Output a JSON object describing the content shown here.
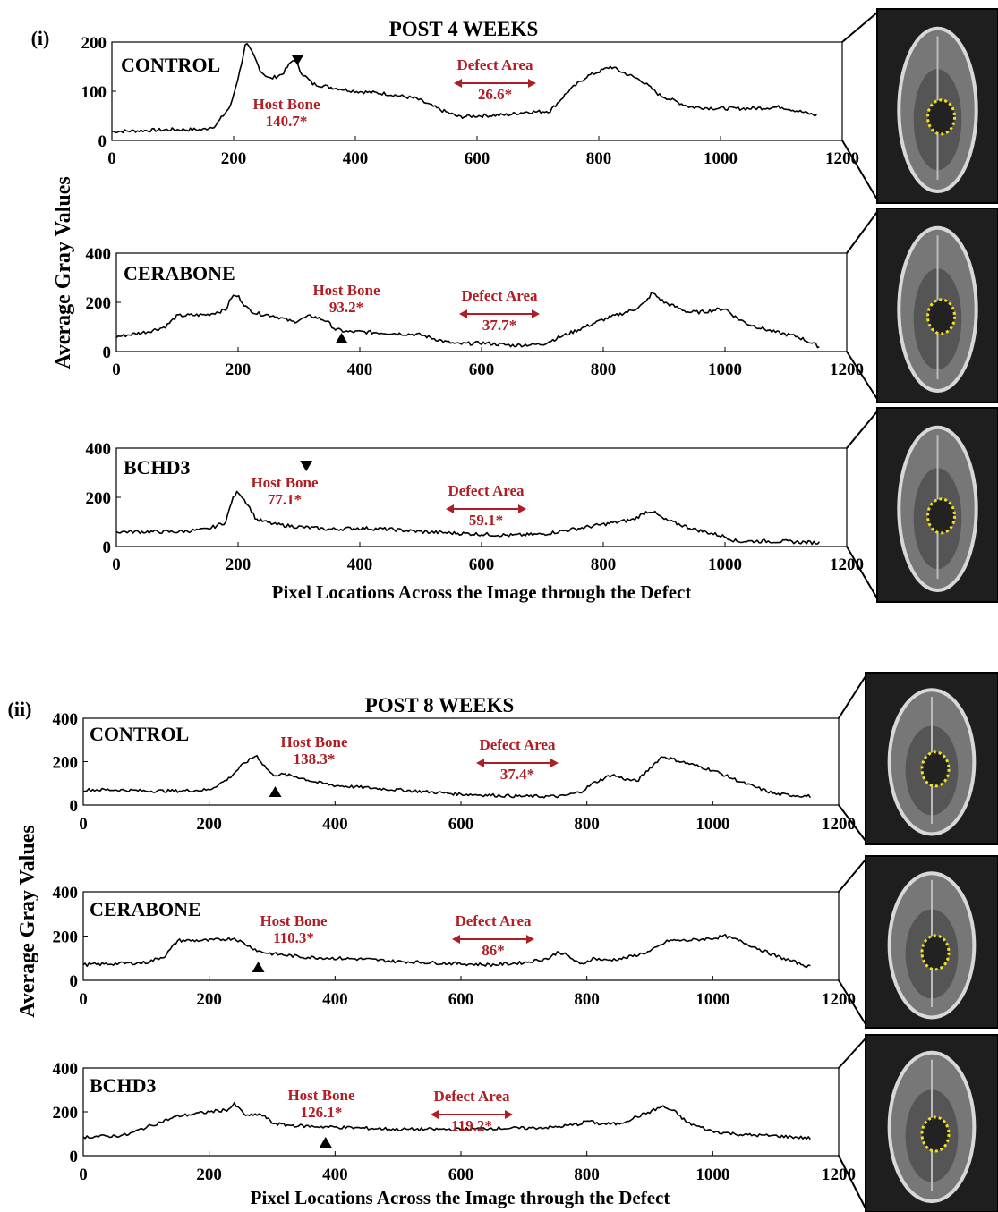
{
  "chart_data": [
    {
      "type": "line",
      "panel_label": "(i)",
      "title": "POST 4 WEEKS",
      "ylabel": "Average Gray Values",
      "xlabel": "Pixel Locations Across the Image through the Defect",
      "subplots": [
        {
          "group": "CONTROL",
          "xlim": [
            0,
            1200
          ],
          "ylim": [
            0,
            200
          ],
          "xticks": [
            "0",
            "200",
            "400",
            "600",
            "800",
            "1000",
            "1200"
          ],
          "yticks": [
            "0",
            "100",
            "200"
          ],
          "host_bone": {
            "label": "Host Bone",
            "value": "140.7*"
          },
          "defect": {
            "label": "Defect Area",
            "value": "26.6*"
          },
          "marker": {
            "x": 305,
            "direction": "down"
          },
          "series": [
            {
              "x": [
                0,
                50,
                100,
                150,
                170,
                195,
                210,
                220,
                232,
                245,
                260,
                280,
                295,
                300,
                310,
                330,
                360,
                400,
                450,
                500,
                540,
                570,
                600,
                650,
                680,
                700,
                720,
                750,
                780,
                820,
                840,
                870,
                900,
                950,
                1000,
                1050,
                1100,
                1160
              ],
              "y": [
                18,
                20,
                22,
                22,
                30,
                70,
                140,
                198,
                175,
                140,
                125,
                135,
                160,
                165,
                140,
                115,
                108,
                100,
                95,
                85,
                62,
                48,
                50,
                52,
                58,
                58,
                60,
                100,
                130,
                150,
                138,
                122,
                92,
                68,
                65,
                65,
                68,
                50
              ]
            }
          ]
        },
        {
          "group": "CERABONE",
          "xlim": [
            0,
            1200
          ],
          "ylim": [
            0,
            400
          ],
          "xticks": [
            "0",
            "200",
            "400",
            "600",
            "800",
            "1000",
            "1200"
          ],
          "yticks": [
            "0",
            "200",
            "400"
          ],
          "host_bone": {
            "label": "Host Bone",
            "value": "93.2*"
          },
          "defect": {
            "label": "Defect Area",
            "value": "37.7*"
          },
          "marker": {
            "x": 370,
            "direction": "up"
          },
          "series": [
            {
              "x": [
                0,
                50,
                80,
                100,
                150,
                180,
                190,
                200,
                215,
                230,
                260,
                290,
                320,
                345,
                360,
                380,
                400,
                450,
                500,
                540,
                560,
                600,
                650,
                700,
                730,
                760,
                800,
                850,
                870,
                880,
                900,
                940,
                960,
                1000,
                1020,
                1040,
                1080,
                1120,
                1155
              ],
              "y": [
                60,
                80,
                100,
                145,
                150,
                170,
                225,
                225,
                175,
                155,
                145,
                120,
                145,
                125,
                90,
                80,
                80,
                75,
                68,
                40,
                30,
                35,
                25,
                30,
                60,
                90,
                130,
                170,
                200,
                240,
                200,
                160,
                160,
                175,
                135,
                110,
                80,
                60,
                20
              ]
            }
          ]
        },
        {
          "group": "BCHD3",
          "xlim": [
            0,
            1200
          ],
          "ylim": [
            0,
            400
          ],
          "xticks": [
            "0",
            "200",
            "400",
            "600",
            "800",
            "1000",
            "1200"
          ],
          "yticks": [
            "0",
            "200",
            "400"
          ],
          "host_bone": {
            "label": "Host Bone",
            "value": "77.1*"
          },
          "defect": {
            "label": "Defect Area",
            "value": "59.1*"
          },
          "marker": {
            "x": 312,
            "direction": "down"
          },
          "series": [
            {
              "x": [
                0,
                50,
                100,
                150,
                180,
                190,
                200,
                215,
                230,
                260,
                300,
                350,
                400,
                450,
                500,
                550,
                600,
                650,
                700,
                750,
                800,
                850,
                870,
                880,
                900,
                950,
                1000,
                1020,
                1050,
                1100,
                1155
              ],
              "y": [
                60,
                60,
                60,
                70,
                100,
                190,
                225,
                175,
                110,
                90,
                80,
                70,
                75,
                70,
                60,
                55,
                50,
                45,
                50,
                70,
                90,
                110,
                140,
                145,
                110,
                70,
                40,
                20,
                22,
                20,
                15
              ]
            }
          ]
        }
      ]
    },
    {
      "type": "line",
      "panel_label": "(ii)",
      "title": "POST 8 WEEKS",
      "ylabel": "Average Gray Values",
      "xlabel": "Pixel Locations Across the Image through the Defect",
      "subplots": [
        {
          "group": "CONTROL",
          "xlim": [
            0,
            1200
          ],
          "ylim": [
            0,
            400
          ],
          "xticks": [
            "0",
            "200",
            "400",
            "600",
            "800",
            "1000",
            "1200"
          ],
          "yticks": [
            "0",
            "200",
            "400"
          ],
          "host_bone": {
            "label": "Host Bone",
            "value": "138.3*"
          },
          "defect": {
            "label": "Defect Area",
            "value": "37.4*"
          },
          "marker": {
            "x": 305,
            "direction": "up"
          },
          "series": [
            {
              "x": [
                0,
                50,
                100,
                150,
                200,
                230,
                255,
                275,
                285,
                300,
                320,
                340,
                370,
                400,
                450,
                500,
                550,
                600,
                650,
                700,
                760,
                790,
                810,
                840,
                860,
                880,
                900,
                920,
                950,
                1000,
                1050,
                1100,
                1155
              ],
              "y": [
                70,
                70,
                65,
                65,
                70,
                120,
                190,
                230,
                190,
                140,
                140,
                130,
                105,
                90,
                80,
                70,
                60,
                50,
                45,
                40,
                40,
                60,
                100,
                140,
                120,
                110,
                170,
                225,
                200,
                160,
                100,
                50,
                40
              ]
            }
          ]
        },
        {
          "group": "CERABONE",
          "xlim": [
            0,
            1200
          ],
          "ylim": [
            0,
            400
          ],
          "xticks": [
            "0",
            "200",
            "400",
            "600",
            "800",
            "1000",
            "1200"
          ],
          "yticks": [
            "0",
            "200",
            "400"
          ],
          "host_bone": {
            "label": "Host Bone",
            "value": "110.3*"
          },
          "defect": {
            "label": "Defect Area",
            "value": "86*"
          },
          "marker": {
            "x": 278,
            "direction": "up"
          },
          "series": [
            {
              "x": [
                0,
                50,
                100,
                130,
                150,
                200,
                240,
                260,
                280,
                300,
                350,
                400,
                450,
                500,
                550,
                600,
                650,
                700,
                740,
                755,
                770,
                790,
                810,
                830,
                860,
                900,
                930,
                960,
                1000,
                1020,
                1050,
                1100,
                1155
              ],
              "y": [
                70,
                75,
                80,
                110,
                180,
                180,
                190,
                160,
                130,
                120,
                105,
                100,
                95,
                85,
                80,
                75,
                70,
                80,
                100,
                130,
                110,
                70,
                100,
                90,
                100,
                130,
                180,
                180,
                190,
                200,
                170,
                110,
                60
              ]
            }
          ]
        },
        {
          "group": "BCHD3",
          "xlim": [
            0,
            1200
          ],
          "ylim": [
            0,
            400
          ],
          "xticks": [
            "0",
            "200",
            "400",
            "600",
            "800",
            "1000",
            "1200"
          ],
          "yticks": [
            "0",
            "200",
            "400"
          ],
          "host_bone": {
            "label": "Host Bone",
            "value": "126.1*"
          },
          "defect": {
            "label": "Defect Area",
            "value": "119.2*"
          },
          "marker": {
            "x": 385,
            "direction": "up"
          },
          "series": [
            {
              "x": [
                0,
                50,
                70,
                100,
                150,
                200,
                230,
                240,
                260,
                280,
                290,
                300,
                320,
                350,
                400,
                450,
                500,
                550,
                600,
                650,
                700,
                750,
                790,
                800,
                820,
                850,
                900,
                920,
                940,
                960,
                1000,
                1050,
                1100,
                1155
              ],
              "y": [
                85,
                90,
                95,
                130,
                180,
                200,
                210,
                235,
                180,
                190,
                175,
                150,
                140,
                135,
                130,
                125,
                120,
                120,
                120,
                125,
                125,
                130,
                145,
                160,
                145,
                145,
                200,
                225,
                200,
                150,
                110,
                95,
                90,
                80
              ]
            }
          ]
        }
      ]
    }
  ],
  "thumbnails": [
    {
      "name": "skull-xray-post4-control",
      "defect_marker_color": "#f0e020"
    },
    {
      "name": "skull-xray-post4-cerabone",
      "defect_marker_color": "#f0e020"
    },
    {
      "name": "skull-xray-post4-bchd3",
      "defect_marker_color": "#f0e020"
    },
    {
      "name": "skull-xray-post8-control",
      "defect_marker_color": "#f0e020"
    },
    {
      "name": "skull-xray-post8-cerabone",
      "defect_marker_color": "#f0e020"
    },
    {
      "name": "skull-xray-post8-bchd3",
      "defect_marker_color": "#f0e020"
    }
  ],
  "colors": {
    "annotation": "#b01e23",
    "line": "#000000"
  }
}
